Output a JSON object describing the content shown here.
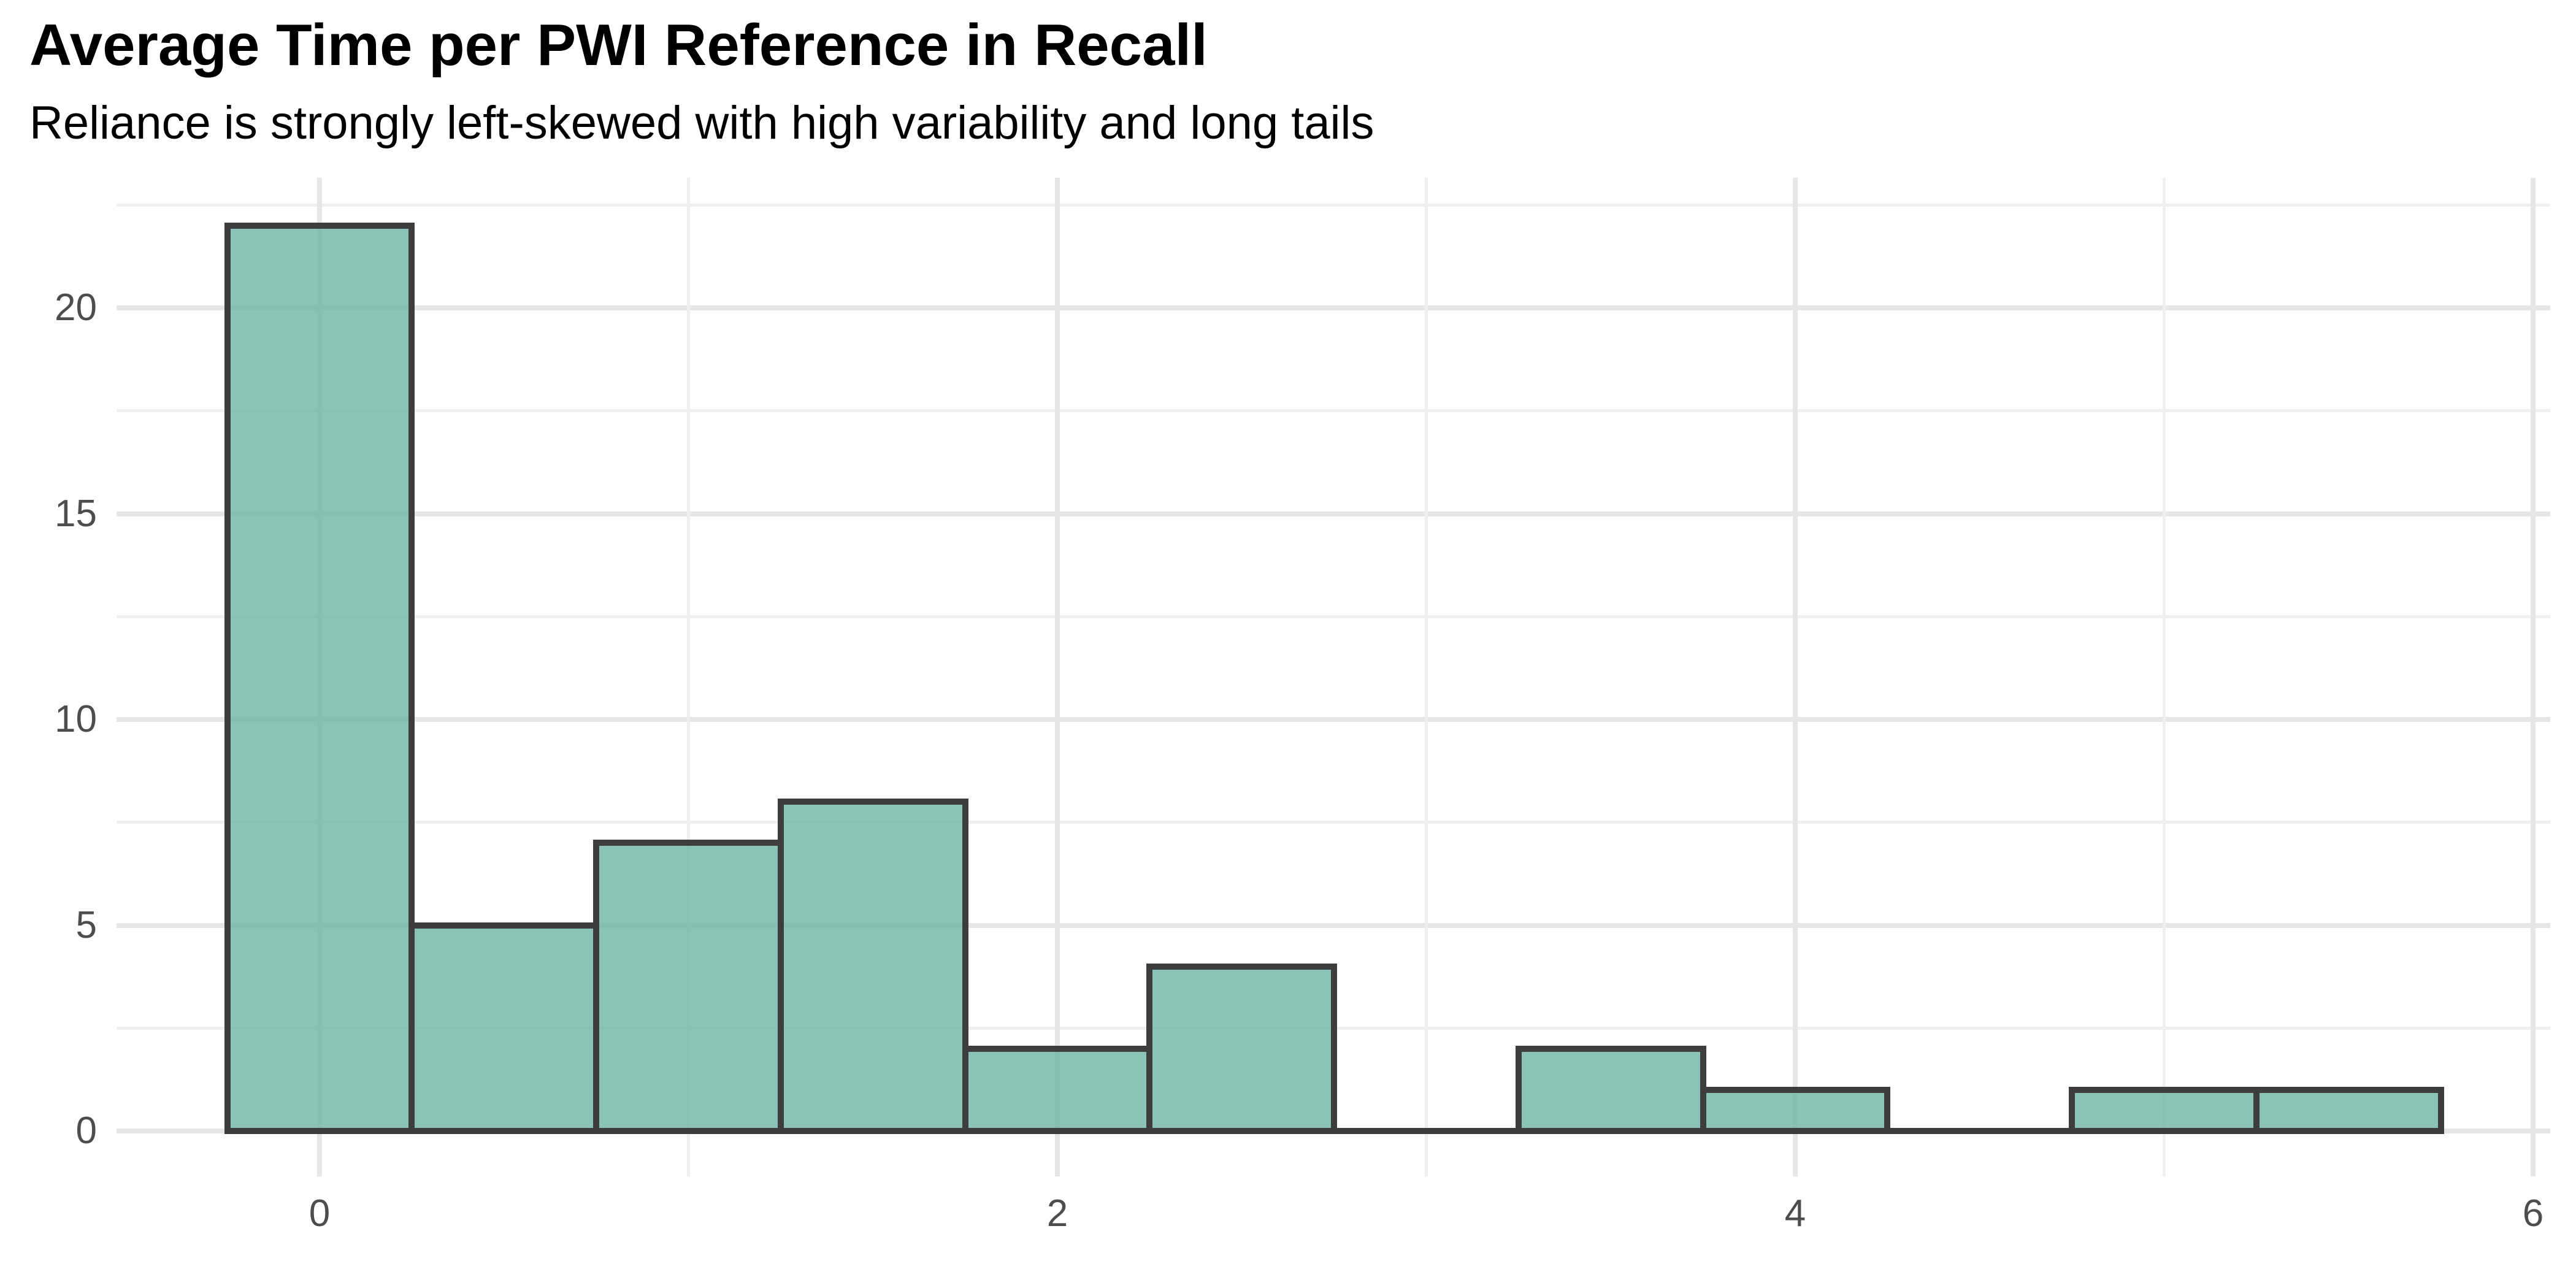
{
  "header": {
    "title": "Average Time per PWI Reference in Recall",
    "subtitle": "Reliance is strongly left-skewed with high variability and long tails"
  },
  "chart_data": {
    "type": "bar",
    "subtype": "histogram",
    "title": "Average Time per PWI Reference in Recall",
    "subtitle": "Reliance is strongly left-skewed with high variability and long tails",
    "xlabel": "",
    "ylabel": "",
    "bin_width": 0.5,
    "bins": [
      {
        "x0": -0.25,
        "x1": 0.25,
        "count": 22
      },
      {
        "x0": 0.25,
        "x1": 0.75,
        "count": 5
      },
      {
        "x0": 0.75,
        "x1": 1.25,
        "count": 7
      },
      {
        "x0": 1.25,
        "x1": 1.75,
        "count": 8
      },
      {
        "x0": 1.75,
        "x1": 2.25,
        "count": 2
      },
      {
        "x0": 2.25,
        "x1": 2.75,
        "count": 4
      },
      {
        "x0": 2.75,
        "x1": 3.25,
        "count": 0
      },
      {
        "x0": 3.25,
        "x1": 3.75,
        "count": 2
      },
      {
        "x0": 3.75,
        "x1": 4.25,
        "count": 1
      },
      {
        "x0": 4.25,
        "x1": 4.75,
        "count": 0
      },
      {
        "x0": 4.75,
        "x1": 5.25,
        "count": 1
      },
      {
        "x0": 5.25,
        "x1": 5.75,
        "count": 1
      }
    ],
    "x_major_ticks": [
      0,
      2,
      4,
      6
    ],
    "x_minor_ticks": [
      1,
      3,
      5
    ],
    "y_major_ticks": [
      0,
      5,
      10,
      15,
      20
    ],
    "y_minor_ticks": [
      2.5,
      7.5,
      12.5,
      17.5,
      22.5
    ],
    "xlim": [
      -0.55,
      6.05
    ],
    "ylim": [
      -1.1,
      23.2
    ],
    "grid": "on",
    "legend": "none",
    "colors": {
      "bar_fill": "rgba(106,180,163,0.78)",
      "bar_stroke": "#3d3d3d",
      "grid_major": "#e6e6e6",
      "grid_minor": "#efefef",
      "axis_text": "#4d4d4d",
      "title_text": "#000000",
      "background": "#ffffff"
    }
  }
}
